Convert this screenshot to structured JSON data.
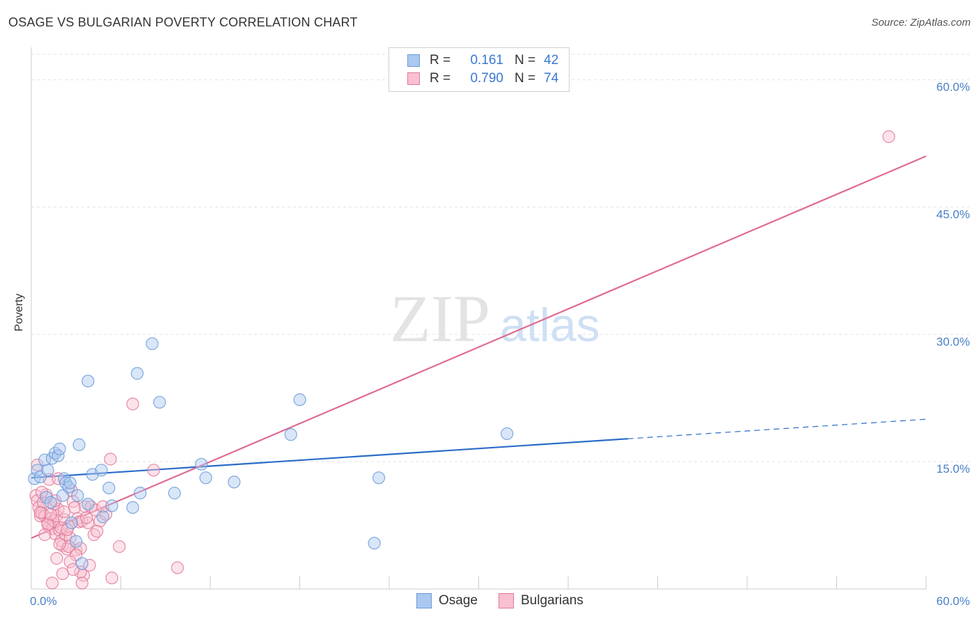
{
  "title": "OSAGE VS BULGARIAN POVERTY CORRELATION CHART",
  "source": "Source: ZipAtlas.com",
  "watermark": {
    "zip": "ZIP",
    "atlas": "atlas"
  },
  "legend_top": {
    "rows": [
      {
        "r_label": "R =",
        "r_value": "0.161",
        "n_label": "N =",
        "n_value": "42",
        "color": "#aac8f0",
        "border": "#6a9ad8"
      },
      {
        "r_label": "R =",
        "r_value": "0.790",
        "n_label": "N =",
        "n_value": "74",
        "color": "#f8c0d0",
        "border": "#e07898"
      }
    ]
  },
  "legend_bottom": [
    {
      "label": "Osage",
      "color": "#aac8f0",
      "border": "#6a9ad8"
    },
    {
      "label": "Bulgarians",
      "color": "#f8c0d0",
      "border": "#e07898"
    }
  ],
  "chart_data": {
    "type": "scatter",
    "title": "OSAGE VS BULGARIAN POVERTY CORRELATION CHART",
    "xlabel": "",
    "ylabel": "Poverty",
    "xlim": [
      0,
      60
    ],
    "ylim": [
      0,
      63
    ],
    "x_tick_labels": [
      "0.0%",
      "60.0%"
    ],
    "y_ticks": [
      15,
      30,
      45,
      60
    ],
    "y_tick_labels": [
      "15.0%",
      "30.0%",
      "45.0%",
      "60.0%"
    ],
    "grid": true,
    "series": [
      {
        "name": "Osage",
        "color": "#6a9ad8",
        "fill": "#aac8f0",
        "points": [
          [
            0.2,
            13.0
          ],
          [
            0.4,
            14.0
          ],
          [
            0.6,
            13.2
          ],
          [
            0.9,
            15.2
          ],
          [
            1.1,
            14.0
          ],
          [
            1.4,
            15.4
          ],
          [
            1.6,
            16.0
          ],
          [
            1.8,
            15.7
          ],
          [
            1.9,
            16.5
          ],
          [
            2.2,
            13.0
          ],
          [
            2.3,
            12.5
          ],
          [
            2.5,
            12.0
          ],
          [
            2.6,
            12.5
          ],
          [
            1.0,
            10.8
          ],
          [
            1.3,
            10.2
          ],
          [
            2.1,
            11.0
          ],
          [
            3.1,
            11.0
          ],
          [
            3.2,
            17.0
          ],
          [
            3.8,
            10.0
          ],
          [
            4.1,
            13.5
          ],
          [
            4.7,
            14.0
          ],
          [
            5.2,
            11.9
          ],
          [
            5.4,
            9.8
          ],
          [
            6.8,
            9.6
          ],
          [
            7.1,
            25.4
          ],
          [
            7.3,
            11.3
          ],
          [
            8.1,
            28.9
          ],
          [
            8.6,
            22.0
          ],
          [
            9.6,
            11.3
          ],
          [
            11.4,
            14.7
          ],
          [
            11.7,
            13.1
          ],
          [
            13.6,
            12.6
          ],
          [
            3.8,
            24.5
          ],
          [
            17.4,
            18.2
          ],
          [
            18.0,
            22.3
          ],
          [
            23.0,
            5.4
          ],
          [
            23.3,
            13.1
          ],
          [
            31.9,
            18.3
          ],
          [
            3.0,
            5.6
          ],
          [
            3.4,
            3.0
          ],
          [
            4.8,
            8.5
          ],
          [
            2.7,
            7.8
          ]
        ]
      },
      {
        "name": "Bulgarians",
        "color": "#e07898",
        "fill": "#f8c0d0",
        "points": [
          [
            0.3,
            11.0
          ],
          [
            0.4,
            10.4
          ],
          [
            0.5,
            9.6
          ],
          [
            0.6,
            8.6
          ],
          [
            0.7,
            9.0
          ],
          [
            0.8,
            10.2
          ],
          [
            0.9,
            8.6
          ],
          [
            1.0,
            11.1
          ],
          [
            1.1,
            7.8
          ],
          [
            1.2,
            7.3
          ],
          [
            1.3,
            8.3
          ],
          [
            1.4,
            7.1
          ],
          [
            1.5,
            8.0
          ],
          [
            1.6,
            6.5
          ],
          [
            1.7,
            8.6
          ],
          [
            1.8,
            9.4
          ],
          [
            1.9,
            6.9
          ],
          [
            2.0,
            5.7
          ],
          [
            2.1,
            5.1
          ],
          [
            2.2,
            8.2
          ],
          [
            2.3,
            6.4
          ],
          [
            2.4,
            4.7
          ],
          [
            2.5,
            7.4
          ],
          [
            2.6,
            6.0
          ],
          [
            2.7,
            11.6
          ],
          [
            2.8,
            10.3
          ],
          [
            2.9,
            9.6
          ],
          [
            3.0,
            4.6
          ],
          [
            3.1,
            8.3
          ],
          [
            3.2,
            7.9
          ],
          [
            3.3,
            4.8
          ],
          [
            3.4,
            8.0
          ],
          [
            3.5,
            1.6
          ],
          [
            3.6,
            9.7
          ],
          [
            3.8,
            7.8
          ],
          [
            4.0,
            9.7
          ],
          [
            4.2,
            6.4
          ],
          [
            4.3,
            9.3
          ],
          [
            4.6,
            8.0
          ],
          [
            5.0,
            8.8
          ],
          [
            5.3,
            15.3
          ],
          [
            5.4,
            1.3
          ],
          [
            5.9,
            5.0
          ],
          [
            6.8,
            21.8
          ],
          [
            8.2,
            14.0
          ],
          [
            9.8,
            2.5
          ],
          [
            1.2,
            12.9
          ],
          [
            1.8,
            13.0
          ],
          [
            0.4,
            14.6
          ],
          [
            0.6,
            9.0
          ],
          [
            1.5,
            10.0
          ],
          [
            2.0,
            7.2
          ],
          [
            2.5,
            5.0
          ],
          [
            3.0,
            4.0
          ],
          [
            3.3,
            2.0
          ],
          [
            2.6,
            3.2
          ],
          [
            1.9,
            5.3
          ],
          [
            1.6,
            10.4
          ],
          [
            3.7,
            8.4
          ],
          [
            4.4,
            6.8
          ],
          [
            2.1,
            1.8
          ],
          [
            1.4,
            0.7
          ],
          [
            3.4,
            0.7
          ],
          [
            2.8,
            2.3
          ],
          [
            1.1,
            7.6
          ],
          [
            0.9,
            6.4
          ],
          [
            1.7,
            3.6
          ],
          [
            2.2,
            9.1
          ],
          [
            3.9,
            2.8
          ],
          [
            4.8,
            9.7
          ],
          [
            0.7,
            11.4
          ],
          [
            1.3,
            8.8
          ],
          [
            2.4,
            7.0
          ],
          [
            57.5,
            53.3
          ]
        ]
      }
    ],
    "trendlines": [
      {
        "series": "Osage",
        "x": [
          0,
          40
        ],
        "y": [
          13.1,
          17.7
        ],
        "dashed_extension_to_x": 60,
        "dashed_end_y": 20.0,
        "color": "#2a6cc8"
      },
      {
        "series": "Bulgarians",
        "x": [
          0,
          60
        ],
        "y": [
          6.0,
          51.0
        ],
        "color": "#e06a90"
      }
    ]
  }
}
